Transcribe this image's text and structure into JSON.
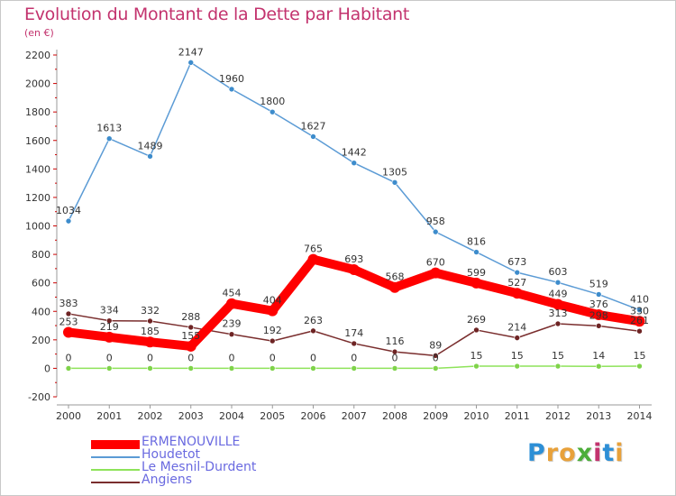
{
  "title": "Evolution du Montant de la Dette par Habitant",
  "unit_label": "(en €)",
  "brand": {
    "letters": [
      {
        "ch": "P",
        "color": "#2d8fd6"
      },
      {
        "ch": "r",
        "color": "#e8a13a"
      },
      {
        "ch": "o",
        "color": "#e8a13a"
      },
      {
        "ch": "x",
        "color": "#4cae3a"
      },
      {
        "ch": "i",
        "color": "#c3336e"
      },
      {
        "ch": "t",
        "color": "#2d8fd6"
      },
      {
        "ch": "i",
        "color": "#e8a13a"
      }
    ]
  },
  "chart_data": {
    "type": "line",
    "x": [
      "2000",
      "2001",
      "2002",
      "2003",
      "2004",
      "2005",
      "2006",
      "2007",
      "2008",
      "2009",
      "2010",
      "2011",
      "2012",
      "2013",
      "2014"
    ],
    "ylim": [
      -200,
      2200
    ],
    "yticks": [
      "-200",
      "0",
      "200",
      "400",
      "600",
      "800",
      "1000",
      "1200",
      "1400",
      "1600",
      "1800",
      "2000",
      "2200"
    ],
    "grid": false,
    "legend_position": "bottom-left",
    "series": [
      {
        "name": "Houdetot",
        "color": "#5b9bd5",
        "marker": "#3d8ccc",
        "values": [
          1034,
          1613,
          1489,
          2147,
          1960,
          1800,
          1627,
          1442,
          1305,
          958,
          816,
          673,
          603,
          519,
          410
        ]
      },
      {
        "name": "Angiens",
        "color": "#7a2e2e",
        "marker": "#6e2424",
        "values": [
          383,
          334,
          332,
          288,
          239,
          192,
          263,
          174,
          116,
          89,
          269,
          214,
          313,
          298,
          261
        ]
      },
      {
        "name": "Le Mesnil-Durdent",
        "color": "#8ee35a",
        "marker": "#7fd34a",
        "values": [
          0,
          0,
          0,
          0,
          0,
          0,
          0,
          0,
          0,
          0,
          15,
          15,
          15,
          14,
          15
        ]
      },
      {
        "name": "ERMENOUVILLE",
        "color": "#ff0000",
        "marker": "#ff0000",
        "values": [
          253,
          219,
          185,
          155,
          454,
          404,
          765,
          693,
          568,
          670,
          599,
          527,
          449,
          376,
          330
        ]
      }
    ],
    "data_labels": {
      "Houdetot": [
        "1034",
        "1613",
        "1489",
        "2147",
        "1960",
        "1800",
        "1627",
        "1442",
        "1305",
        "958",
        "816",
        "673",
        "603",
        "519",
        "410"
      ],
      "Angiens": [
        "383",
        "334",
        "332",
        "288",
        "239",
        "192",
        "263",
        "174",
        "116",
        "89",
        "269",
        "214",
        "313",
        "298",
        "261"
      ],
      "Le Mesnil-Durdent": [
        "0",
        "0",
        "0",
        "0",
        "0",
        "0",
        "0",
        "0",
        "0",
        "0",
        "15",
        "15",
        "15",
        "14",
        "15"
      ],
      "ERMENOUVILLE": [
        "253",
        "219",
        "185",
        "155",
        "454",
        "404",
        "765",
        "693",
        "568",
        "670",
        "599",
        "527",
        "449",
        "376",
        "330"
      ]
    },
    "legend": [
      "ERMENOUVILLE",
      "Houdetot",
      "Le Mesnil-Durdent",
      "Angiens"
    ]
  }
}
